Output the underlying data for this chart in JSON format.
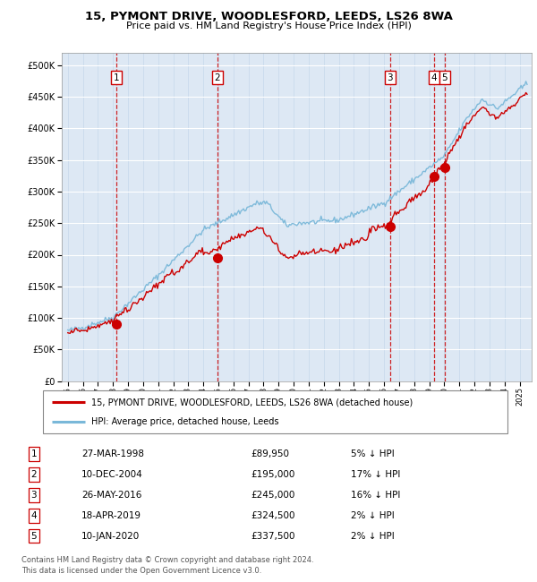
{
  "title1": "15, PYMONT DRIVE, WOODLESFORD, LEEDS, LS26 8WA",
  "title2": "Price paid vs. HM Land Registry's House Price Index (HPI)",
  "legend_line1": "15, PYMONT DRIVE, WOODLESFORD, LEEDS, LS26 8WA (detached house)",
  "legend_line2": "HPI: Average price, detached house, Leeds",
  "footnote1": "Contains HM Land Registry data © Crown copyright and database right 2024.",
  "footnote2": "This data is licensed under the Open Government Licence v3.0.",
  "sales": [
    {
      "num": 1,
      "date_x": 1998.24,
      "price": 89950
    },
    {
      "num": 2,
      "date_x": 2004.94,
      "price": 195000
    },
    {
      "num": 3,
      "date_x": 2016.4,
      "price": 245000
    },
    {
      "num": 4,
      "date_x": 2019.3,
      "price": 324500
    },
    {
      "num": 5,
      "date_x": 2020.03,
      "price": 337500
    }
  ],
  "table_rows": [
    {
      "num": "1",
      "date_str": "27-MAR-1998",
      "price_str": "£89,950",
      "hpi_str": "5% ↓ HPI"
    },
    {
      "num": "2",
      "date_str": "10-DEC-2004",
      "price_str": "£195,000",
      "hpi_str": "17% ↓ HPI"
    },
    {
      "num": "3",
      "date_str": "26-MAY-2016",
      "price_str": "£245,000",
      "hpi_str": "16% ↓ HPI"
    },
    {
      "num": "4",
      "date_str": "18-APR-2019",
      "price_str": "£324,500",
      "hpi_str": "2% ↓ HPI"
    },
    {
      "num": "5",
      "date_str": "10-JAN-2020",
      "price_str": "£337,500",
      "hpi_str": "2% ↓ HPI"
    }
  ],
  "hpi_color": "#7ab8d9",
  "sale_color": "#cc0000",
  "bg_color": "#dde8f4",
  "grid_color": "#ffffff",
  "vline_color": "#cc0000",
  "ylim": [
    0,
    520000
  ],
  "yticks": [
    0,
    50000,
    100000,
    150000,
    200000,
    250000,
    300000,
    350000,
    400000,
    450000,
    500000
  ],
  "xmin": 1994.6,
  "xmax": 2025.8
}
